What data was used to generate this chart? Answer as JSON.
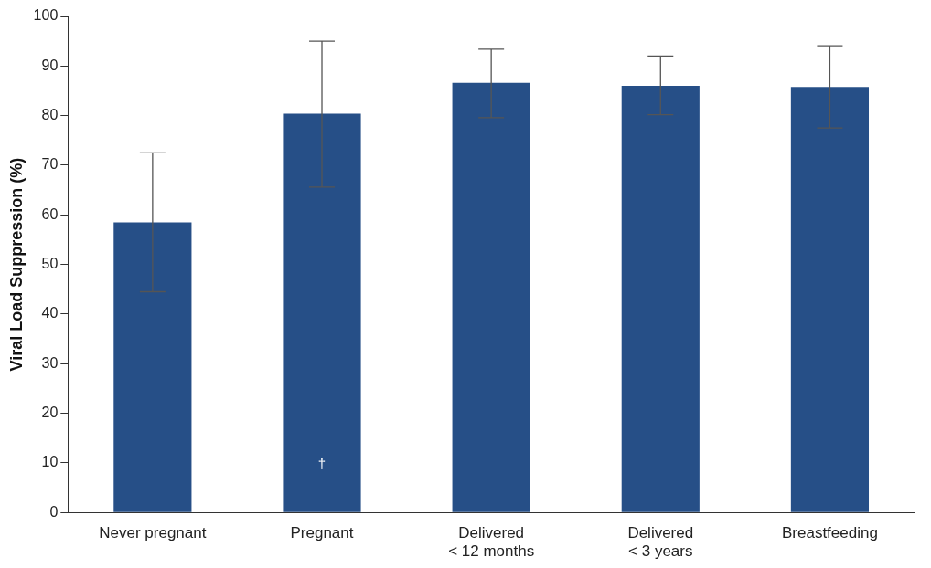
{
  "chart_data": {
    "type": "bar",
    "ylabel": "Viral Load Suppression (%)",
    "categories": [
      "Never pregnant",
      "Pregnant",
      "Delivered\n< 12 months",
      "Delivered\n< 3 years",
      "Breastfeeding"
    ],
    "values": [
      58.5,
      80.4,
      86.6,
      86.0,
      85.8
    ],
    "errors": [
      [
        44.5,
        72.5
      ],
      [
        65.6,
        95.0
      ],
      [
        79.6,
        93.4
      ],
      [
        80.2,
        92.0
      ],
      [
        77.5,
        94.1
      ]
    ],
    "color": "#264f87",
    "ylim": [
      0,
      100
    ],
    "yticks": [
      0,
      10,
      20,
      30,
      40,
      50,
      60,
      70,
      80,
      90,
      100
    ],
    "grid": false,
    "legend": false,
    "annotations": [
      "†"
    ]
  }
}
